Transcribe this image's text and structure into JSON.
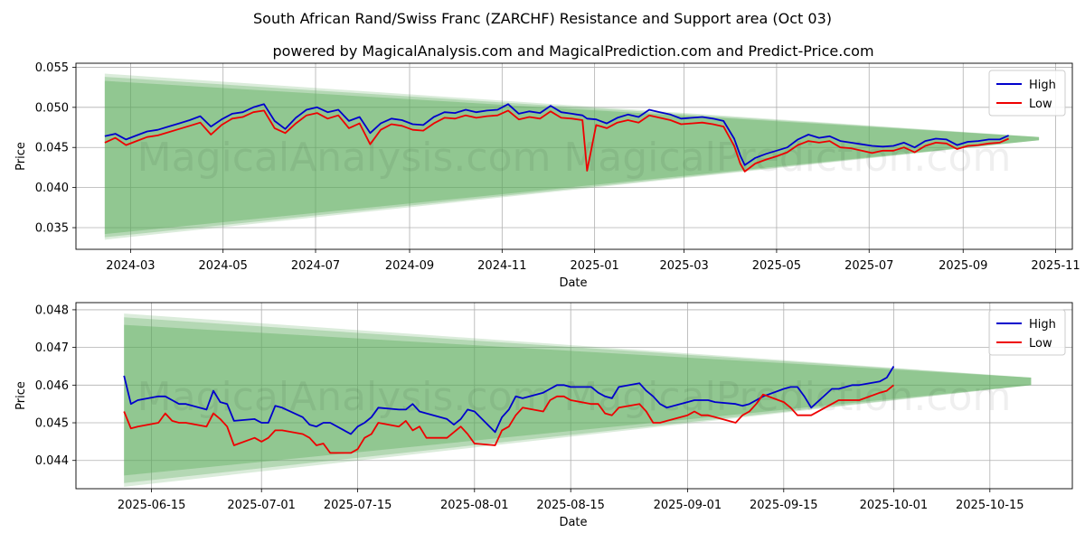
{
  "title": "South African Rand/Swiss Franc (ZARCHF) Resistance and Support area (Oct 03)",
  "subtitle": "powered by MagicalAnalysis.com and MagicalPrediction.com and Predict-Price.com",
  "watermark": "MagicalAnalysis.com   MagicalPrediction.com",
  "colors": {
    "high": "#0000cc",
    "low": "#ee0000",
    "band": "#5aaa5a",
    "grid": "#b0b0b0"
  },
  "chart_data": [
    {
      "type": "line",
      "panel": "top",
      "xlabel": "Date",
      "ylabel": "Price",
      "xlim": [
        "2024-01-25",
        "2025-11-12"
      ],
      "ylim": [
        0.0323,
        0.0555
      ],
      "x_ticks": [
        "2024-03",
        "2024-05",
        "2024-07",
        "2024-09",
        "2024-11",
        "2025-01",
        "2025-03",
        "2025-05",
        "2025-07",
        "2025-09",
        "2025-11"
      ],
      "y_ticks": [
        "0.035",
        "0.040",
        "0.045",
        "0.050",
        "0.055"
      ],
      "legend": {
        "position": "top-right",
        "entries": [
          "High",
          "Low"
        ]
      },
      "grid": true,
      "band": {
        "start": "2024-02-13",
        "end": "2025-10-21",
        "upper_start": [
          0.0542,
          0.0538,
          0.0533
        ],
        "lower_start": [
          0.0335,
          0.0338,
          0.0342
        ],
        "end_range": [
          0.0459,
          0.0463
        ]
      },
      "series": [
        {
          "name": "High",
          "dates": [
            "2024-02-13",
            "2024-02-20",
            "2024-02-27",
            "2024-03-05",
            "2024-03-12",
            "2024-03-19",
            "2024-03-26",
            "2024-04-02",
            "2024-04-09",
            "2024-04-16",
            "2024-04-23",
            "2024-04-30",
            "2024-05-07",
            "2024-05-14",
            "2024-05-21",
            "2024-05-28",
            "2024-06-04",
            "2024-06-11",
            "2024-06-18",
            "2024-06-25",
            "2024-07-02",
            "2024-07-09",
            "2024-07-16",
            "2024-07-23",
            "2024-07-30",
            "2024-08-06",
            "2024-08-13",
            "2024-08-20",
            "2024-08-27",
            "2024-09-03",
            "2024-09-10",
            "2024-09-17",
            "2024-09-24",
            "2024-10-01",
            "2024-10-08",
            "2024-10-15",
            "2024-10-22",
            "2024-10-29",
            "2024-11-05",
            "2024-11-12",
            "2024-11-19",
            "2024-11-26",
            "2024-12-03",
            "2024-12-10",
            "2024-12-17",
            "2024-12-24",
            "2024-12-27",
            "2025-01-02",
            "2025-01-09",
            "2025-01-16",
            "2025-01-23",
            "2025-01-30",
            "2025-02-06",
            "2025-02-13",
            "2025-02-20",
            "2025-02-27",
            "2025-03-06",
            "2025-03-13",
            "2025-03-20",
            "2025-03-27",
            "2025-04-03",
            "2025-04-07",
            "2025-04-10",
            "2025-04-17",
            "2025-04-24",
            "2025-05-01",
            "2025-05-08",
            "2025-05-15",
            "2025-05-22",
            "2025-05-29",
            "2025-06-05",
            "2025-06-12",
            "2025-06-19",
            "2025-06-26",
            "2025-07-03",
            "2025-07-10",
            "2025-07-17",
            "2025-07-24",
            "2025-07-31",
            "2025-08-07",
            "2025-08-14",
            "2025-08-21",
            "2025-08-28",
            "2025-09-04",
            "2025-09-11",
            "2025-09-18",
            "2025-09-25",
            "2025-10-01"
          ],
          "values": [
            0.0464,
            0.0467,
            0.046,
            0.0465,
            0.047,
            0.0472,
            0.0476,
            0.048,
            0.0484,
            0.0489,
            0.0476,
            0.0485,
            0.0492,
            0.0494,
            0.05,
            0.0504,
            0.0483,
            0.0473,
            0.0487,
            0.0497,
            0.05,
            0.0494,
            0.0497,
            0.0483,
            0.0488,
            0.0468,
            0.048,
            0.0486,
            0.0484,
            0.0479,
            0.0478,
            0.0488,
            0.0494,
            0.0493,
            0.0497,
            0.0494,
            0.0496,
            0.0497,
            0.0504,
            0.0492,
            0.0495,
            0.0493,
            0.0502,
            0.0494,
            0.0492,
            0.049,
            0.0486,
            0.0485,
            0.048,
            0.0487,
            0.0491,
            0.0488,
            0.0497,
            0.0494,
            0.0491,
            0.0486,
            0.0487,
            0.0488,
            0.0486,
            0.0483,
            0.0461,
            0.044,
            0.0428,
            0.0437,
            0.0442,
            0.0446,
            0.045,
            0.046,
            0.0466,
            0.0462,
            0.0464,
            0.0458,
            0.0456,
            0.0454,
            0.0452,
            0.0451,
            0.0452,
            0.0456,
            0.045,
            0.0458,
            0.0461,
            0.046,
            0.0453,
            0.0457,
            0.0458,
            0.046,
            0.046,
            0.0465
          ]
        },
        {
          "name": "Low",
          "dates": [
            "2024-02-13",
            "2024-02-20",
            "2024-02-27",
            "2024-03-05",
            "2024-03-12",
            "2024-03-19",
            "2024-03-26",
            "2024-04-02",
            "2024-04-09",
            "2024-04-16",
            "2024-04-23",
            "2024-04-30",
            "2024-05-07",
            "2024-05-14",
            "2024-05-21",
            "2024-05-28",
            "2024-06-04",
            "2024-06-11",
            "2024-06-18",
            "2024-06-25",
            "2024-07-02",
            "2024-07-09",
            "2024-07-16",
            "2024-07-23",
            "2024-07-30",
            "2024-08-06",
            "2024-08-13",
            "2024-08-20",
            "2024-08-27",
            "2024-09-03",
            "2024-09-10",
            "2024-09-17",
            "2024-09-24",
            "2024-10-01",
            "2024-10-08",
            "2024-10-15",
            "2024-10-22",
            "2024-10-29",
            "2024-11-05",
            "2024-11-12",
            "2024-11-19",
            "2024-11-26",
            "2024-12-03",
            "2024-12-10",
            "2024-12-17",
            "2024-12-24",
            "2024-12-27",
            "2025-01-02",
            "2025-01-09",
            "2025-01-16",
            "2025-01-23",
            "2025-01-30",
            "2025-02-06",
            "2025-02-13",
            "2025-02-20",
            "2025-02-27",
            "2025-03-06",
            "2025-03-13",
            "2025-03-20",
            "2025-03-27",
            "2025-04-03",
            "2025-04-07",
            "2025-04-10",
            "2025-04-17",
            "2025-04-24",
            "2025-05-01",
            "2025-05-08",
            "2025-05-15",
            "2025-05-22",
            "2025-05-29",
            "2025-06-05",
            "2025-06-12",
            "2025-06-19",
            "2025-06-26",
            "2025-07-03",
            "2025-07-10",
            "2025-07-17",
            "2025-07-24",
            "2025-07-31",
            "2025-08-07",
            "2025-08-14",
            "2025-08-21",
            "2025-08-28",
            "2025-09-04",
            "2025-09-11",
            "2025-09-18",
            "2025-09-25",
            "2025-10-01"
          ],
          "values": [
            0.0456,
            0.0462,
            0.0453,
            0.0458,
            0.0463,
            0.0465,
            0.0469,
            0.0473,
            0.0477,
            0.0481,
            0.0466,
            0.0478,
            0.0486,
            0.0488,
            0.0494,
            0.0496,
            0.0474,
            0.0468,
            0.048,
            0.049,
            0.0493,
            0.0486,
            0.049,
            0.0474,
            0.048,
            0.0454,
            0.0472,
            0.0479,
            0.0477,
            0.0472,
            0.0471,
            0.048,
            0.0487,
            0.0486,
            0.049,
            0.0487,
            0.0489,
            0.049,
            0.0496,
            0.0485,
            0.0488,
            0.0486,
            0.0495,
            0.0487,
            0.0486,
            0.0484,
            0.0421,
            0.0478,
            0.0474,
            0.0481,
            0.0484,
            0.0481,
            0.049,
            0.0487,
            0.0484,
            0.0479,
            0.048,
            0.0481,
            0.0479,
            0.0476,
            0.0452,
            0.043,
            0.042,
            0.043,
            0.0435,
            0.0439,
            0.0444,
            0.0453,
            0.0458,
            0.0456,
            0.0458,
            0.045,
            0.0449,
            0.0446,
            0.0443,
            0.0446,
            0.0446,
            0.045,
            0.0444,
            0.0452,
            0.0456,
            0.0455,
            0.0448,
            0.0452,
            0.0453,
            0.0455,
            0.0456,
            0.0461
          ]
        }
      ]
    },
    {
      "type": "line",
      "panel": "bottom",
      "xlabel": "Date",
      "ylabel": "Price",
      "xlim": [
        "2025-06-04",
        "2025-10-27"
      ],
      "ylim": [
        0.04325,
        0.04819
      ],
      "x_ticks": [
        "2025-06-15",
        "2025-07-01",
        "2025-07-15",
        "2025-08-01",
        "2025-08-15",
        "2025-09-01",
        "2025-09-15",
        "2025-10-01",
        "2025-10-15"
      ],
      "y_ticks": [
        "0.044",
        "0.045",
        "0.046",
        "0.047",
        "0.048"
      ],
      "legend": {
        "position": "top-right",
        "entries": [
          "High",
          "Low"
        ]
      },
      "grid": true,
      "band": {
        "start": "2025-06-11",
        "end": "2025-10-21",
        "upper_start": [
          0.0479,
          0.0478,
          0.0476
        ],
        "lower_start": [
          0.0433,
          0.0434,
          0.0436
        ],
        "end_range": [
          0.046,
          0.0462
        ]
      },
      "series": [
        {
          "name": "High",
          "dates": [
            "2025-06-11",
            "2025-06-12",
            "2025-06-13",
            "2025-06-16",
            "2025-06-17",
            "2025-06-18",
            "2025-06-19",
            "2025-06-20",
            "2025-06-23",
            "2025-06-24",
            "2025-06-25",
            "2025-06-26",
            "2025-06-27",
            "2025-06-30",
            "2025-07-01",
            "2025-07-02",
            "2025-07-03",
            "2025-07-04",
            "2025-07-07",
            "2025-07-08",
            "2025-07-09",
            "2025-07-10",
            "2025-07-11",
            "2025-07-14",
            "2025-07-15",
            "2025-07-16",
            "2025-07-17",
            "2025-07-18",
            "2025-07-21",
            "2025-07-22",
            "2025-07-23",
            "2025-07-24",
            "2025-07-25",
            "2025-07-28",
            "2025-07-29",
            "2025-07-30",
            "2025-07-31",
            "2025-08-01",
            "2025-08-04",
            "2025-08-05",
            "2025-08-06",
            "2025-08-07",
            "2025-08-08",
            "2025-08-11",
            "2025-08-12",
            "2025-08-13",
            "2025-08-14",
            "2025-08-15",
            "2025-08-18",
            "2025-08-19",
            "2025-08-20",
            "2025-08-21",
            "2025-08-22",
            "2025-08-25",
            "2025-08-26",
            "2025-08-27",
            "2025-08-28",
            "2025-08-29",
            "2025-09-01",
            "2025-09-02",
            "2025-09-03",
            "2025-09-04",
            "2025-09-05",
            "2025-09-08",
            "2025-09-09",
            "2025-09-10",
            "2025-09-11",
            "2025-09-12",
            "2025-09-15",
            "2025-09-16",
            "2025-09-17",
            "2025-09-18",
            "2025-09-19",
            "2025-09-22",
            "2025-09-23",
            "2025-09-24",
            "2025-09-25",
            "2025-09-26",
            "2025-09-29",
            "2025-09-30",
            "2025-10-01"
          ],
          "values": [
            0.04625,
            0.0455,
            0.0456,
            0.0457,
            0.0457,
            0.0456,
            0.0455,
            0.0455,
            0.04535,
            0.04585,
            0.04555,
            0.0455,
            0.04505,
            0.0451,
            0.045,
            0.045,
            0.04545,
            0.0454,
            0.04515,
            0.04495,
            0.0449,
            0.045,
            0.045,
            0.0447,
            0.0449,
            0.045,
            0.04515,
            0.0454,
            0.04535,
            0.04535,
            0.0455,
            0.0453,
            0.04525,
            0.0451,
            0.04495,
            0.0451,
            0.04535,
            0.0453,
            0.04475,
            0.04515,
            0.04535,
            0.0457,
            0.04565,
            0.0458,
            0.0459,
            0.046,
            0.046,
            0.04595,
            0.04595,
            0.0458,
            0.0457,
            0.04565,
            0.04595,
            0.04605,
            0.04585,
            0.0457,
            0.0455,
            0.0454,
            0.04555,
            0.0456,
            0.0456,
            0.0456,
            0.04555,
            0.0455,
            0.04545,
            0.0455,
            0.0456,
            0.0457,
            0.0459,
            0.04595,
            0.04595,
            0.0457,
            0.0454,
            0.0459,
            0.0459,
            0.04595,
            0.046,
            0.046,
            0.0461,
            0.0462,
            0.0465
          ]
        },
        {
          "name": "Low",
          "dates": [
            "2025-06-11",
            "2025-06-12",
            "2025-06-13",
            "2025-06-16",
            "2025-06-17",
            "2025-06-18",
            "2025-06-19",
            "2025-06-20",
            "2025-06-23",
            "2025-06-24",
            "2025-06-25",
            "2025-06-26",
            "2025-06-27",
            "2025-06-30",
            "2025-07-01",
            "2025-07-02",
            "2025-07-03",
            "2025-07-04",
            "2025-07-07",
            "2025-07-08",
            "2025-07-09",
            "2025-07-10",
            "2025-07-11",
            "2025-07-14",
            "2025-07-15",
            "2025-07-16",
            "2025-07-17",
            "2025-07-18",
            "2025-07-21",
            "2025-07-22",
            "2025-07-23",
            "2025-07-24",
            "2025-07-25",
            "2025-07-28",
            "2025-07-29",
            "2025-07-30",
            "2025-07-31",
            "2025-08-01",
            "2025-08-04",
            "2025-08-05",
            "2025-08-06",
            "2025-08-07",
            "2025-08-08",
            "2025-08-11",
            "2025-08-12",
            "2025-08-13",
            "2025-08-14",
            "2025-08-15",
            "2025-08-18",
            "2025-08-19",
            "2025-08-20",
            "2025-08-21",
            "2025-08-22",
            "2025-08-25",
            "2025-08-26",
            "2025-08-27",
            "2025-08-28",
            "2025-08-29",
            "2025-09-01",
            "2025-09-02",
            "2025-09-03",
            "2025-09-04",
            "2025-09-05",
            "2025-09-08",
            "2025-09-09",
            "2025-09-10",
            "2025-09-11",
            "2025-09-12",
            "2025-09-15",
            "2025-09-16",
            "2025-09-17",
            "2025-09-18",
            "2025-09-19",
            "2025-09-22",
            "2025-09-23",
            "2025-09-24",
            "2025-09-25",
            "2025-09-26",
            "2025-09-29",
            "2025-09-30",
            "2025-10-01"
          ],
          "values": [
            0.0453,
            0.04485,
            0.0449,
            0.045,
            0.04525,
            0.04505,
            0.045,
            0.045,
            0.0449,
            0.04525,
            0.0451,
            0.0449,
            0.0444,
            0.0446,
            0.0445,
            0.0446,
            0.0448,
            0.0448,
            0.0447,
            0.0446,
            0.0444,
            0.04445,
            0.0442,
            0.0442,
            0.0443,
            0.0446,
            0.0447,
            0.045,
            0.0449,
            0.04505,
            0.0448,
            0.0449,
            0.0446,
            0.0446,
            0.04475,
            0.0449,
            0.0447,
            0.04445,
            0.0444,
            0.0448,
            0.0449,
            0.0452,
            0.0454,
            0.0453,
            0.0456,
            0.0457,
            0.0457,
            0.0456,
            0.0455,
            0.0455,
            0.04525,
            0.0452,
            0.0454,
            0.0455,
            0.0453,
            0.045,
            0.045,
            0.04505,
            0.0452,
            0.0453,
            0.0452,
            0.0452,
            0.04515,
            0.045,
            0.0452,
            0.0453,
            0.0455,
            0.04575,
            0.04555,
            0.0454,
            0.0452,
            0.0452,
            0.0452,
            0.0455,
            0.0456,
            0.0456,
            0.0456,
            0.0456,
            0.0458,
            0.04585,
            0.046
          ]
        }
      ]
    }
  ]
}
